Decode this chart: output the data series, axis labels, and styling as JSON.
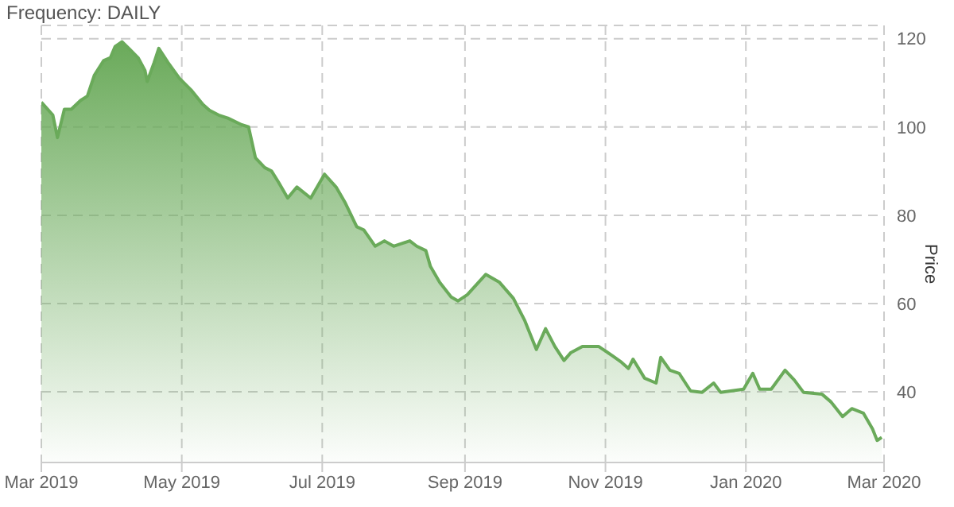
{
  "chart_data": {
    "type": "area",
    "title": "Frequency: DAILY",
    "ylabel": "Price",
    "x": [
      "2019-03-01",
      "2019-03-06",
      "2019-03-08",
      "2019-03-11",
      "2019-03-14",
      "2019-03-18",
      "2019-03-21",
      "2019-03-24",
      "2019-03-28",
      "2019-03-31",
      "2019-04-02",
      "2019-04-05",
      "2019-04-08",
      "2019-04-12",
      "2019-04-15",
      "2019-04-16",
      "2019-04-19",
      "2019-04-21",
      "2019-04-25",
      "2019-04-30",
      "2019-05-05",
      "2019-05-10",
      "2019-05-13",
      "2019-05-17",
      "2019-05-21",
      "2019-05-27",
      "2019-05-30",
      "2019-06-02",
      "2019-06-06",
      "2019-06-09",
      "2019-06-12",
      "2019-06-16",
      "2019-06-20",
      "2019-06-26",
      "2019-07-02",
      "2019-07-07",
      "2019-07-11",
      "2019-07-16",
      "2019-07-19",
      "2019-07-24",
      "2019-07-28",
      "2019-08-01",
      "2019-08-08",
      "2019-08-11",
      "2019-08-15",
      "2019-08-17",
      "2019-08-21",
      "2019-08-26",
      "2019-08-29",
      "2019-09-02",
      "2019-09-10",
      "2019-09-16",
      "2019-09-22",
      "2019-09-27",
      "2019-10-02",
      "2019-10-06",
      "2019-10-10",
      "2019-10-14",
      "2019-10-17",
      "2019-10-22",
      "2019-10-29",
      "2019-11-04",
      "2019-11-08",
      "2019-11-11",
      "2019-11-13",
      "2019-11-18",
      "2019-11-23",
      "2019-11-25",
      "2019-11-29",
      "2019-12-03",
      "2019-12-08",
      "2019-12-13",
      "2019-12-18",
      "2019-12-21",
      "2019-12-31",
      "2020-01-04",
      "2020-01-07",
      "2020-01-12",
      "2020-01-18",
      "2020-01-22",
      "2020-01-26",
      "2020-02-03",
      "2020-02-07",
      "2020-02-12",
      "2020-02-16",
      "2020-02-21",
      "2020-02-25",
      "2020-02-27",
      "2020-02-29"
    ],
    "series": [
      {
        "color": "#6aaa5a",
        "values": [
          105.6,
          102.7,
          97.6,
          104,
          104,
          106,
          107,
          111.7,
          115,
          115.7,
          118.2,
          119.3,
          117.8,
          115.7,
          112.8,
          110.3,
          114.6,
          117.8,
          114.6,
          111,
          108.4,
          105.2,
          103.8,
          102.7,
          102,
          100.5,
          100,
          93,
          90.8,
          90,
          87.5,
          83.9,
          86.4,
          83.9,
          89.3,
          86.4,
          82.8,
          77.4,
          76.7,
          73,
          74.2,
          73,
          74.2,
          73,
          72,
          68.4,
          64.8,
          61.5,
          60.6,
          62,
          66.6,
          64.8,
          61.2,
          56.1,
          49.6,
          54.3,
          50.3,
          47.1,
          48.9,
          50.3,
          50.3,
          48.2,
          46.7,
          45.3,
          47.4,
          43.1,
          42,
          47.8,
          44.9,
          44.2,
          40.2,
          39.9,
          42,
          39.9,
          40.6,
          44.2,
          40.6,
          40.6,
          44.9,
          42.7,
          39.9,
          39.5,
          37.7,
          34.4,
          36.2,
          35.2,
          31.6,
          29,
          29.7
        ]
      }
    ],
    "xlim": [
      "2019-03-01",
      "2020-03-01"
    ],
    "xticks": [
      {
        "value": "2019-03-01",
        "label": "Mar 2019"
      },
      {
        "value": "2019-05-01",
        "label": "May 2019"
      },
      {
        "value": "2019-07-01",
        "label": "Jul 2019"
      },
      {
        "value": "2019-09-01",
        "label": "Sep 2019"
      },
      {
        "value": "2019-11-01",
        "label": "Nov 2019"
      },
      {
        "value": "2020-01-01",
        "label": "Jan 2020"
      },
      {
        "value": "2020-03-01",
        "label": "Mar 2020"
      }
    ],
    "ylim": [
      24,
      123
    ],
    "yticks": [
      40,
      60,
      80,
      100,
      120
    ],
    "grid": true,
    "legend": false
  }
}
